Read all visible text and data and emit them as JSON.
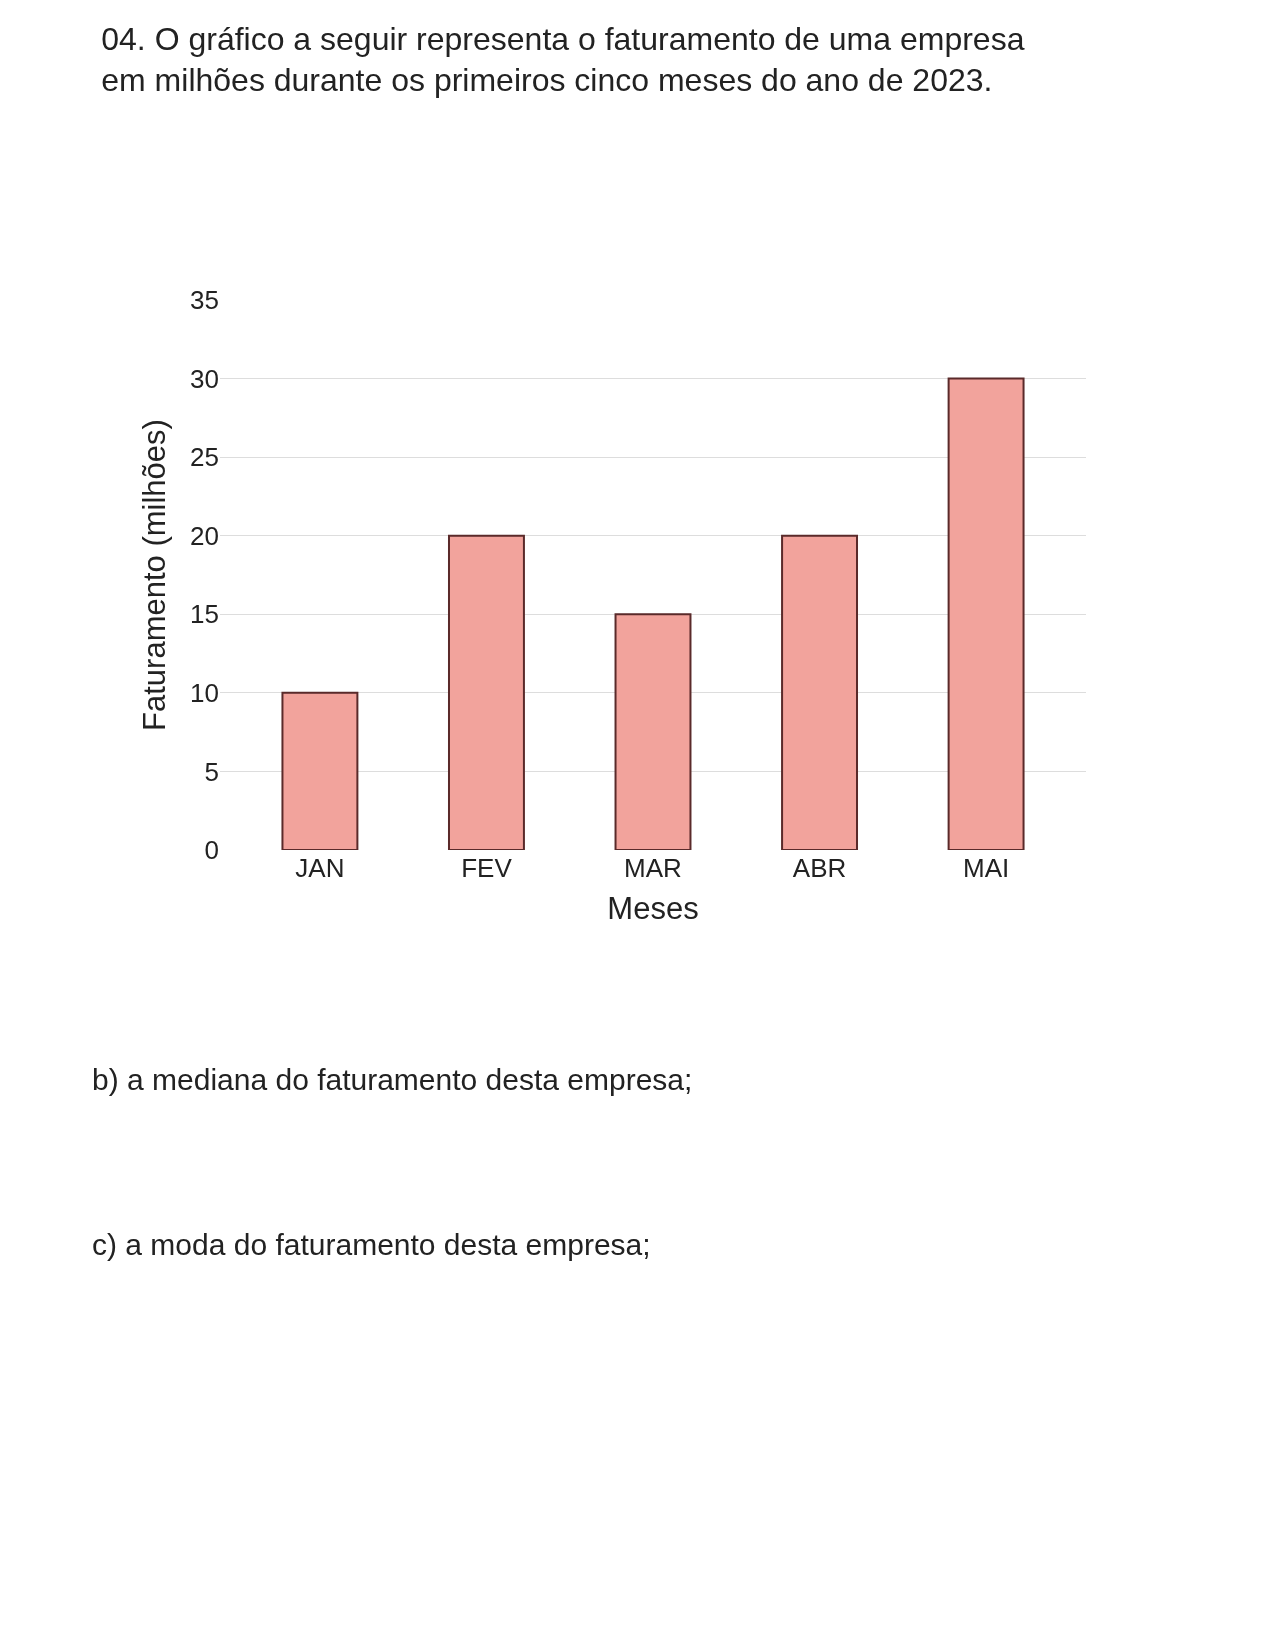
{
  "chart_data": {
    "type": "bar",
    "title": "04. O gráfico a seguir representa o faturamento de uma empresa em milhões durante os primeiros cinco meses do ano de 2023.",
    "xlabel": "Meses",
    "ylabel": "Faturamento (milhões)",
    "categories": [
      "JAN",
      "FEV",
      "MAR",
      "ABR",
      "MAI"
    ],
    "values": [
      10,
      20,
      15,
      20,
      30
    ],
    "color": "#f2a39c",
    "ylim": [
      0,
      35
    ],
    "yticks": [
      0,
      5,
      10,
      15,
      20,
      25,
      30,
      35
    ],
    "grid": "y",
    "legend": false,
    "annotations": [
      "b) a mediana do faturamento desta empresa;",
      "c) a moda do faturamento desta empresa;"
    ]
  }
}
